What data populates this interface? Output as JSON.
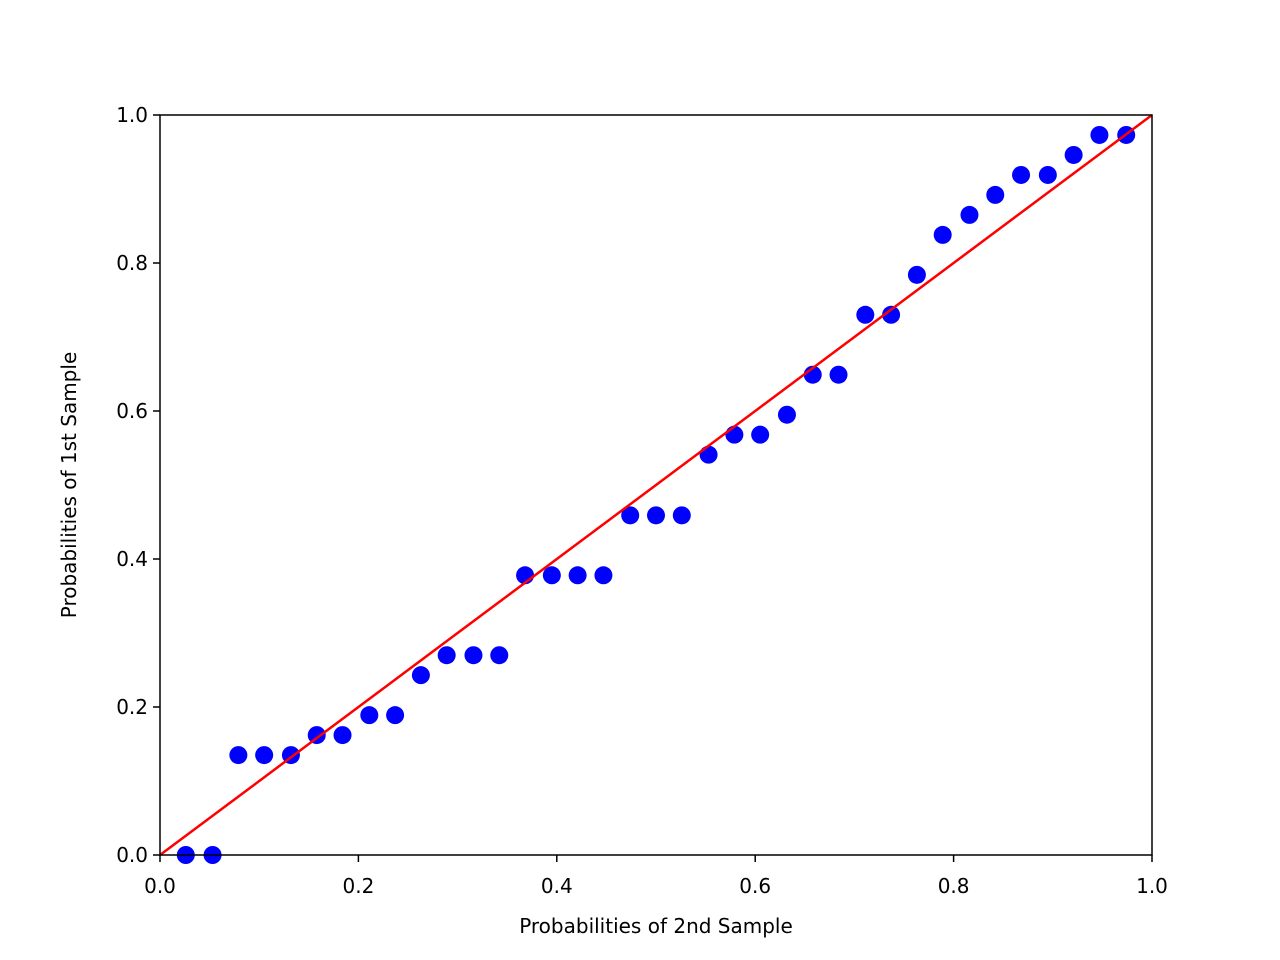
{
  "chart_data": {
    "type": "scatter",
    "xlabel": "Probabilities of 2nd Sample",
    "ylabel": "Probabilities of 1st Sample",
    "series": [
      {
        "color": "#0000ff",
        "x": [
          0.026,
          0.053,
          0.079,
          0.105,
          0.132,
          0.158,
          0.184,
          0.211,
          0.237,
          0.263,
          0.289,
          0.316,
          0.342,
          0.368,
          0.395,
          0.421,
          0.447,
          0.474,
          0.5,
          0.526,
          0.553,
          0.579,
          0.605,
          0.632,
          0.658,
          0.684,
          0.711,
          0.737,
          0.763,
          0.789,
          0.816,
          0.842,
          0.868,
          0.895,
          0.921,
          0.947,
          0.974
        ],
        "values": [
          0,
          0,
          0.135,
          0.135,
          0.135,
          0.162,
          0.162,
          0.189,
          0.189,
          0.243,
          0.27,
          0.27,
          0.27,
          0.378,
          0.378,
          0.378,
          0.378,
          0.459,
          0.459,
          0.459,
          0.541,
          0.568,
          0.568,
          0.595,
          0.649,
          0.649,
          0.73,
          0.73,
          0.784,
          0.838,
          0.865,
          0.892,
          0.919,
          0.919,
          0.946,
          0.973,
          0.973
        ]
      }
    ],
    "reference_line": {
      "color": "#ff0000",
      "x": [
        0,
        1
      ],
      "values": [
        0,
        1
      ]
    },
    "xlim": [
      0,
      1
    ],
    "ylim": [
      0,
      1
    ],
    "xticks": [
      {
        "value": 0,
        "label": "0.0"
      },
      0.2,
      0.4,
      0.6,
      0.8,
      {
        "value": 1,
        "label": "1.0"
      }
    ],
    "yticks": [
      {
        "value": 0,
        "label": "0.0"
      },
      0.2,
      0.4,
      0.6,
      0.8,
      {
        "value": 1,
        "label": "1.0"
      }
    ]
  }
}
